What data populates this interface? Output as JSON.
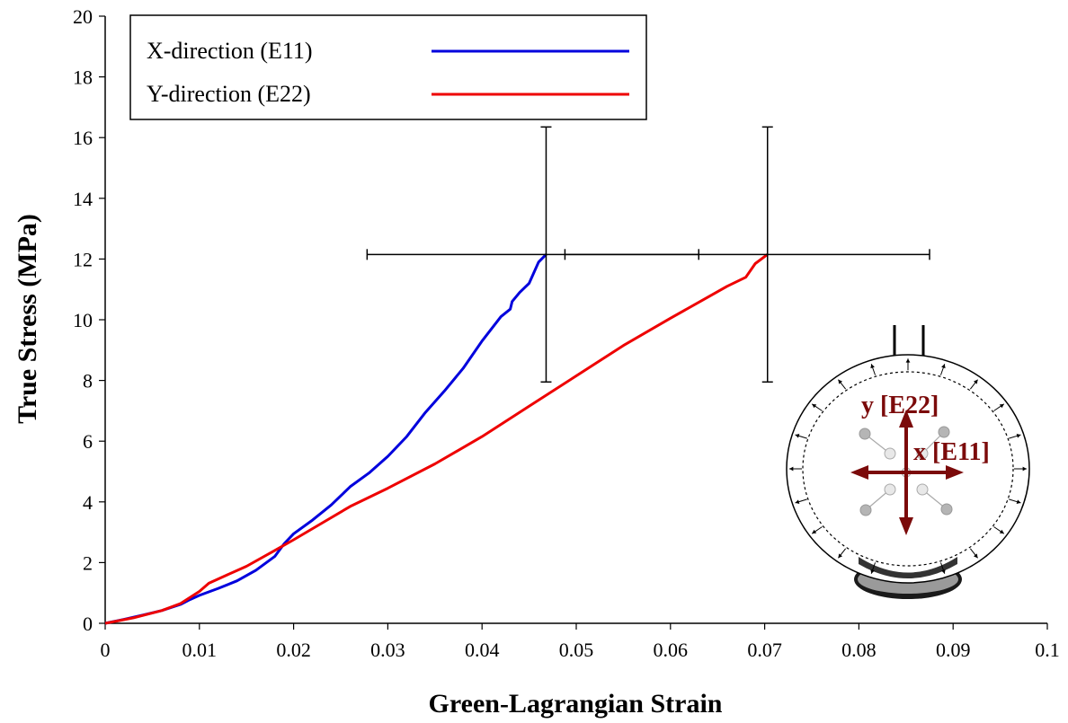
{
  "chart_data": {
    "type": "line",
    "xlabel": "Green-Lagrangian Strain",
    "ylabel": "True Stress (MPa)",
    "xlim": [
      0,
      0.1
    ],
    "ylim": [
      0,
      20
    ],
    "x_ticks": [
      "0",
      "0.01",
      "0.02",
      "0.03",
      "0.04",
      "0.05",
      "0.06",
      "0.07",
      "0.08",
      "0.09",
      "0.1"
    ],
    "y_ticks": [
      "0",
      "2",
      "4",
      "6",
      "8",
      "10",
      "12",
      "14",
      "16",
      "18",
      "20"
    ],
    "grid": false,
    "legend_position": "top-left",
    "series": [
      {
        "name": "X-direction (E11)",
        "color": "#0000dd",
        "points": [
          [
            0,
            0
          ],
          [
            0.002,
            0.13
          ],
          [
            0.004,
            0.27
          ],
          [
            0.006,
            0.42
          ],
          [
            0.008,
            0.62
          ],
          [
            0.009,
            0.78
          ],
          [
            0.01,
            0.92
          ],
          [
            0.012,
            1.15
          ],
          [
            0.014,
            1.4
          ],
          [
            0.016,
            1.75
          ],
          [
            0.018,
            2.2
          ],
          [
            0.019,
            2.62
          ],
          [
            0.02,
            2.95
          ],
          [
            0.022,
            3.4
          ],
          [
            0.024,
            3.9
          ],
          [
            0.026,
            4.5
          ],
          [
            0.028,
            4.95
          ],
          [
            0.03,
            5.5
          ],
          [
            0.032,
            6.15
          ],
          [
            0.034,
            6.95
          ],
          [
            0.036,
            7.65
          ],
          [
            0.038,
            8.4
          ],
          [
            0.04,
            9.3
          ],
          [
            0.042,
            10.1
          ],
          [
            0.043,
            10.35
          ],
          [
            0.0432,
            10.6
          ],
          [
            0.044,
            10.9
          ],
          [
            0.045,
            11.2
          ],
          [
            0.046,
            11.9
          ],
          [
            0.0468,
            12.15
          ]
        ],
        "error_bar": {
          "x": 0.0468,
          "y": 12.15,
          "x_minus": 0.0278,
          "x_plus": 0.063,
          "y_minus": 7.95,
          "y_plus": 16.35
        }
      },
      {
        "name": "Y-direction (E22)",
        "color": "#ee0000",
        "points": [
          [
            0,
            0
          ],
          [
            0.003,
            0.18
          ],
          [
            0.006,
            0.42
          ],
          [
            0.008,
            0.65
          ],
          [
            0.01,
            1.05
          ],
          [
            0.011,
            1.32
          ],
          [
            0.013,
            1.6
          ],
          [
            0.015,
            1.88
          ],
          [
            0.018,
            2.4
          ],
          [
            0.02,
            2.75
          ],
          [
            0.023,
            3.3
          ],
          [
            0.026,
            3.85
          ],
          [
            0.03,
            4.45
          ],
          [
            0.035,
            5.25
          ],
          [
            0.04,
            6.15
          ],
          [
            0.045,
            7.15
          ],
          [
            0.05,
            8.15
          ],
          [
            0.055,
            9.15
          ],
          [
            0.06,
            10.05
          ],
          [
            0.064,
            10.75
          ],
          [
            0.066,
            11.1
          ],
          [
            0.068,
            11.4
          ],
          [
            0.069,
            11.85
          ],
          [
            0.0703,
            12.15
          ]
        ],
        "error_bar": {
          "x": 0.0703,
          "y": 12.15,
          "x_minus": 0.0488,
          "x_plus": 0.0875,
          "y_minus": 7.95,
          "y_plus": 16.35
        }
      }
    ]
  },
  "inset": {
    "label_y": "y [E22]",
    "label_x": "x [E11]",
    "arrow_color": "#7b0a0a"
  }
}
